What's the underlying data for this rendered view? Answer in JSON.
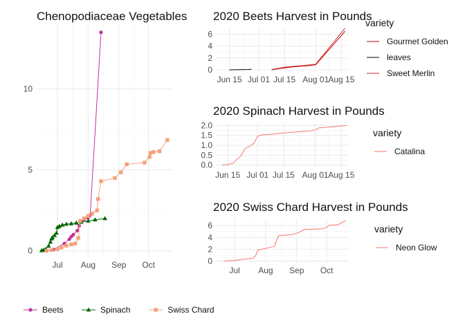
{
  "chart_data": [
    {
      "id": "main",
      "type": "line",
      "title": "Chenopodiaceae Vegetables",
      "xlabel": "",
      "ylabel": "",
      "x_ticks": [
        {
          "date": "2020-07-01",
          "label": "Jul"
        },
        {
          "date": "2020-08-01",
          "label": "Aug"
        },
        {
          "date": "2020-09-01",
          "label": "Sep"
        },
        {
          "date": "2020-10-01",
          "label": "Oct"
        }
      ],
      "y_ticks": [
        0,
        5,
        10
      ],
      "xlim": [
        "2020-06-10",
        "2020-10-25"
      ],
      "ylim": [
        -0.4,
        14.0
      ],
      "grid": true,
      "legend_position": "bottom",
      "series": [
        {
          "name": "Beets",
          "color": "#C0309D",
          "marker": "circle",
          "points": [
            [
              "2020-06-20",
              0.02
            ],
            [
              "2020-06-27",
              0.08
            ],
            [
              "2020-07-08",
              0.45
            ],
            [
              "2020-07-13",
              0.72
            ],
            [
              "2020-07-15",
              0.88
            ],
            [
              "2020-07-17",
              1.0
            ],
            [
              "2020-07-21",
              1.25
            ],
            [
              "2020-07-23",
              1.55
            ],
            [
              "2020-07-25",
              1.8
            ],
            [
              "2020-07-28",
              1.92
            ],
            [
              "2020-08-01",
              2.05
            ],
            [
              "2020-08-03",
              2.2
            ],
            [
              "2020-08-14",
              13.5
            ]
          ]
        },
        {
          "name": "Spinach",
          "color": "#006400",
          "marker": "triangle",
          "points": [
            [
              "2020-06-15",
              0.02
            ],
            [
              "2020-06-17",
              0.05
            ],
            [
              "2020-06-19",
              0.1
            ],
            [
              "2020-06-22",
              0.3
            ],
            [
              "2020-06-24",
              0.55
            ],
            [
              "2020-06-25",
              0.75
            ],
            [
              "2020-06-26",
              0.82
            ],
            [
              "2020-06-28",
              0.95
            ],
            [
              "2020-06-30",
              1.1
            ],
            [
              "2020-07-01",
              1.45
            ],
            [
              "2020-07-03",
              1.52
            ],
            [
              "2020-07-06",
              1.6
            ],
            [
              "2020-07-10",
              1.65
            ],
            [
              "2020-07-15",
              1.68
            ],
            [
              "2020-07-20",
              1.72
            ],
            [
              "2020-07-25",
              1.78
            ],
            [
              "2020-08-01",
              1.85
            ],
            [
              "2020-08-08",
              1.92
            ],
            [
              "2020-08-18",
              2.0
            ]
          ]
        },
        {
          "name": "Swiss Chard",
          "color": "#F5A07A",
          "marker": "square",
          "points": [
            [
              "2020-06-20",
              0.0
            ],
            [
              "2020-06-25",
              0.05
            ],
            [
              "2020-07-01",
              0.1
            ],
            [
              "2020-07-05",
              0.2
            ],
            [
              "2020-07-10",
              0.32
            ],
            [
              "2020-07-15",
              0.4
            ],
            [
              "2020-07-19",
              0.45
            ],
            [
              "2020-07-22",
              0.8
            ],
            [
              "2020-07-24",
              1.85
            ],
            [
              "2020-07-28",
              2.0
            ],
            [
              "2020-08-01",
              2.15
            ],
            [
              "2020-08-05",
              2.3
            ],
            [
              "2020-08-10",
              2.5
            ],
            [
              "2020-08-11",
              3.2
            ],
            [
              "2020-08-14",
              4.3
            ],
            [
              "2020-08-28",
              4.5
            ],
            [
              "2020-09-03",
              4.85
            ],
            [
              "2020-09-09",
              5.35
            ],
            [
              "2020-09-27",
              5.45
            ],
            [
              "2020-10-02",
              5.8
            ],
            [
              "2020-10-03",
              6.05
            ],
            [
              "2020-10-06",
              6.1
            ],
            [
              "2020-10-12",
              6.15
            ],
            [
              "2020-10-20",
              6.85
            ]
          ]
        }
      ]
    },
    {
      "id": "beets",
      "type": "line",
      "title": "2020 Beets Harvest in Pounds",
      "legend_title": "variety",
      "x_ticks": [
        {
          "date": "2020-06-15",
          "label": "Jun 15"
        },
        {
          "date": "2020-07-01",
          "label": "Jul 01"
        },
        {
          "date": "2020-07-15",
          "label": "Jul 15"
        },
        {
          "date": "2020-08-01",
          "label": "Aug 01"
        },
        {
          "date": "2020-08-15",
          "label": "Aug 15"
        }
      ],
      "y_ticks": [
        0,
        2,
        4,
        6
      ],
      "xlim": [
        "2020-06-08",
        "2020-08-19"
      ],
      "ylim": [
        -0.35,
        7.1
      ],
      "grid": true,
      "series": [
        {
          "name": "Gourmet Golden",
          "color": "#C00000",
          "points": [
            [
              "2020-07-08",
              0.0
            ],
            [
              "2020-07-13",
              0.25
            ],
            [
              "2020-07-18",
              0.45
            ],
            [
              "2020-07-23",
              0.6
            ],
            [
              "2020-07-28",
              0.7
            ],
            [
              "2020-08-01",
              0.85
            ],
            [
              "2020-08-17",
              6.5
            ]
          ]
        },
        {
          "name": "leaves",
          "color": "#000000",
          "points": [
            [
              "2020-06-15",
              0.0
            ],
            [
              "2020-06-25",
              0.05
            ],
            [
              "2020-06-27",
              0.1
            ]
          ]
        },
        {
          "name": "Sweet Merlin",
          "color": "#D8262A",
          "points": [
            [
              "2020-07-08",
              0.05
            ],
            [
              "2020-07-15",
              0.45
            ],
            [
              "2020-07-20",
              0.6
            ],
            [
              "2020-07-25",
              0.72
            ],
            [
              "2020-08-01",
              0.95
            ],
            [
              "2020-08-17",
              7.0
            ]
          ]
        }
      ]
    },
    {
      "id": "spinach",
      "type": "line",
      "title": "2020 Spinach Harvest in Pounds",
      "legend_title": "variety",
      "x_ticks": [
        {
          "date": "2020-06-15",
          "label": "Jun 15"
        },
        {
          "date": "2020-07-01",
          "label": "Jul 01"
        },
        {
          "date": "2020-07-15",
          "label": "Jul 15"
        },
        {
          "date": "2020-08-01",
          "label": "Aug 01"
        },
        {
          "date": "2020-08-15",
          "label": "Aug 15"
        }
      ],
      "y_ticks": [
        0.0,
        0.5,
        1.0,
        1.5,
        2.0
      ],
      "y_tick_labels": [
        "0.0",
        "0.5",
        "1.0",
        "1.5",
        "2.0"
      ],
      "xlim": [
        "2020-06-09",
        "2020-08-19"
      ],
      "ylim": [
        -0.12,
        2.12
      ],
      "grid": true,
      "series": [
        {
          "name": "Catalina",
          "color": "#F8766D",
          "points": [
            [
              "2020-06-12",
              0.0
            ],
            [
              "2020-06-15",
              0.02
            ],
            [
              "2020-06-18",
              0.1
            ],
            [
              "2020-06-20",
              0.3
            ],
            [
              "2020-06-22",
              0.45
            ],
            [
              "2020-06-24",
              0.8
            ],
            [
              "2020-06-25",
              0.88
            ],
            [
              "2020-06-27",
              0.95
            ],
            [
              "2020-06-29",
              1.1
            ],
            [
              "2020-07-01",
              1.45
            ],
            [
              "2020-07-03",
              1.52
            ],
            [
              "2020-07-08",
              1.55
            ],
            [
              "2020-07-15",
              1.62
            ],
            [
              "2020-07-22",
              1.68
            ],
            [
              "2020-07-29",
              1.72
            ],
            [
              "2020-08-01",
              1.78
            ],
            [
              "2020-08-03",
              1.88
            ],
            [
              "2020-08-10",
              1.93
            ],
            [
              "2020-08-18",
              2.0
            ]
          ]
        }
      ]
    },
    {
      "id": "chard",
      "type": "line",
      "title": "2020 Swiss Chard Harvest in Pounds",
      "legend_title": "variety",
      "x_ticks": [
        {
          "date": "2020-07-01",
          "label": "Jul"
        },
        {
          "date": "2020-08-01",
          "label": "Aug"
        },
        {
          "date": "2020-09-01",
          "label": "Sep"
        },
        {
          "date": "2020-10-01",
          "label": "Oct"
        }
      ],
      "y_ticks": [
        0,
        2,
        4,
        6
      ],
      "xlim": [
        "2020-06-13",
        "2020-10-23"
      ],
      "ylim": [
        -0.3,
        7.2
      ],
      "grid": true,
      "series": [
        {
          "name": "Neon Glow",
          "color": "#F8766D",
          "points": [
            [
              "2020-06-20",
              0.0
            ],
            [
              "2020-06-25",
              0.05
            ],
            [
              "2020-07-01",
              0.1
            ],
            [
              "2020-07-05",
              0.2
            ],
            [
              "2020-07-10",
              0.32
            ],
            [
              "2020-07-15",
              0.4
            ],
            [
              "2020-07-19",
              0.45
            ],
            [
              "2020-07-22",
              0.9
            ],
            [
              "2020-07-24",
              1.85
            ],
            [
              "2020-07-28",
              2.0
            ],
            [
              "2020-08-01",
              2.15
            ],
            [
              "2020-08-05",
              2.3
            ],
            [
              "2020-08-10",
              2.5
            ],
            [
              "2020-08-12",
              3.6
            ],
            [
              "2020-08-14",
              4.3
            ],
            [
              "2020-08-28",
              4.5
            ],
            [
              "2020-09-03",
              4.85
            ],
            [
              "2020-09-09",
              5.35
            ],
            [
              "2020-09-27",
              5.45
            ],
            [
              "2020-10-02",
              5.8
            ],
            [
              "2020-10-03",
              6.05
            ],
            [
              "2020-10-06",
              6.1
            ],
            [
              "2020-10-12",
              6.15
            ],
            [
              "2020-10-20",
              6.85
            ]
          ]
        }
      ]
    }
  ]
}
